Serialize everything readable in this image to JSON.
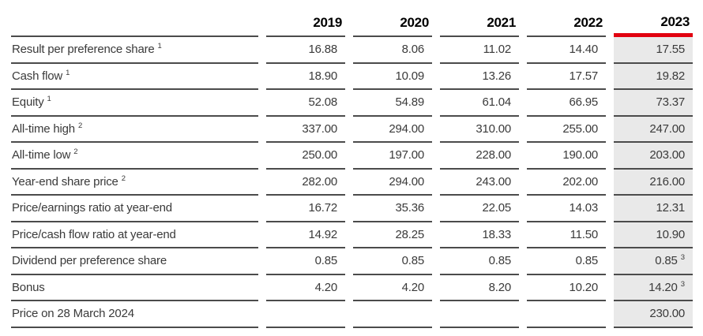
{
  "colors": {
    "accent_red": "#e1000f",
    "highlight_bg": "#e9e9e9",
    "rule": "#4b4b4b",
    "text": "#3a3a3a",
    "header_text": "#000000"
  },
  "table": {
    "year_headers": [
      "2019",
      "2020",
      "2021",
      "2022",
      "2023"
    ],
    "highlight_year": "2023",
    "rows": [
      {
        "label": "Result per preference share",
        "label_sup": "1",
        "values": [
          "16.88",
          "8.06",
          "11.02",
          "14.40",
          "17.55"
        ],
        "value_sups": [
          "",
          "",
          "",
          "",
          ""
        ]
      },
      {
        "label": "Cash flow",
        "label_sup": "1",
        "values": [
          "18.90",
          "10.09",
          "13.26",
          "17.57",
          "19.82"
        ],
        "value_sups": [
          "",
          "",
          "",
          "",
          ""
        ]
      },
      {
        "label": "Equity",
        "label_sup": "1",
        "values": [
          "52.08",
          "54.89",
          "61.04",
          "66.95",
          "73.37"
        ],
        "value_sups": [
          "",
          "",
          "",
          "",
          ""
        ]
      },
      {
        "label": "All-time high",
        "label_sup": "2",
        "values": [
          "337.00",
          "294.00",
          "310.00",
          "255.00",
          "247.00"
        ],
        "value_sups": [
          "",
          "",
          "",
          "",
          ""
        ]
      },
      {
        "label": "All-time low",
        "label_sup": "2",
        "values": [
          "250.00",
          "197.00",
          "228.00",
          "190.00",
          "203.00"
        ],
        "value_sups": [
          "",
          "",
          "",
          "",
          ""
        ]
      },
      {
        "label": "Year-end share price",
        "label_sup": "2",
        "values": [
          "282.00",
          "294.00",
          "243.00",
          "202.00",
          "216.00"
        ],
        "value_sups": [
          "",
          "",
          "",
          "",
          ""
        ]
      },
      {
        "label": "Price/earnings ratio at year-end",
        "label_sup": "",
        "values": [
          "16.72",
          "35.36",
          "22.05",
          "14.03",
          "12.31"
        ],
        "value_sups": [
          "",
          "",
          "",
          "",
          ""
        ]
      },
      {
        "label": "Price/cash flow ratio at year-end",
        "label_sup": "",
        "values": [
          "14.92",
          "28.25",
          "18.33",
          "11.50",
          "10.90"
        ],
        "value_sups": [
          "",
          "",
          "",
          "",
          ""
        ]
      },
      {
        "label": "Dividend per preference share",
        "label_sup": "",
        "values": [
          "0.85",
          "0.85",
          "0.85",
          "0.85",
          "0.85"
        ],
        "value_sups": [
          "",
          "",
          "",
          "",
          "3"
        ]
      },
      {
        "label": "Bonus",
        "label_sup": "",
        "values": [
          "4.20",
          "4.20",
          "8.20",
          "10.20",
          "14.20"
        ],
        "value_sups": [
          "",
          "",
          "",
          "",
          "3"
        ]
      },
      {
        "label": "Price on 28 March 2024",
        "label_sup": "",
        "values": [
          "",
          "",
          "",
          "",
          "230.00"
        ],
        "value_sups": [
          "",
          "",
          "",
          "",
          ""
        ]
      }
    ]
  }
}
